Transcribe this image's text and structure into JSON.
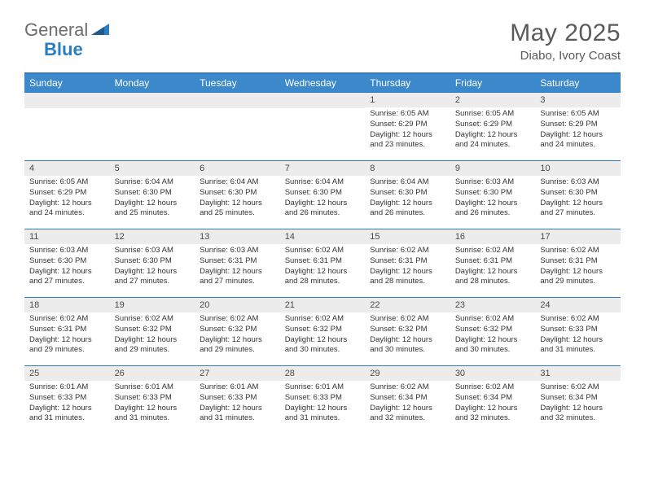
{
  "logo": {
    "part1": "General",
    "part2": "Blue"
  },
  "title": "May 2025",
  "subtitle": "Diabo, Ivory Coast",
  "colors": {
    "accent": "#3b89ca",
    "border": "#2d7dc3",
    "daynum_bg": "#ececec",
    "text_muted": "#5a5a5a",
    "text": "#333333"
  },
  "day_headers": [
    "Sunday",
    "Monday",
    "Tuesday",
    "Wednesday",
    "Thursday",
    "Friday",
    "Saturday"
  ],
  "weeks": [
    [
      null,
      null,
      null,
      null,
      {
        "n": "1",
        "sunrise": "6:05 AM",
        "sunset": "6:29 PM",
        "daylight": "12 hours and 23 minutes."
      },
      {
        "n": "2",
        "sunrise": "6:05 AM",
        "sunset": "6:29 PM",
        "daylight": "12 hours and 24 minutes."
      },
      {
        "n": "3",
        "sunrise": "6:05 AM",
        "sunset": "6:29 PM",
        "daylight": "12 hours and 24 minutes."
      }
    ],
    [
      {
        "n": "4",
        "sunrise": "6:05 AM",
        "sunset": "6:29 PM",
        "daylight": "12 hours and 24 minutes."
      },
      {
        "n": "5",
        "sunrise": "6:04 AM",
        "sunset": "6:30 PM",
        "daylight": "12 hours and 25 minutes."
      },
      {
        "n": "6",
        "sunrise": "6:04 AM",
        "sunset": "6:30 PM",
        "daylight": "12 hours and 25 minutes."
      },
      {
        "n": "7",
        "sunrise": "6:04 AM",
        "sunset": "6:30 PM",
        "daylight": "12 hours and 26 minutes."
      },
      {
        "n": "8",
        "sunrise": "6:04 AM",
        "sunset": "6:30 PM",
        "daylight": "12 hours and 26 minutes."
      },
      {
        "n": "9",
        "sunrise": "6:03 AM",
        "sunset": "6:30 PM",
        "daylight": "12 hours and 26 minutes."
      },
      {
        "n": "10",
        "sunrise": "6:03 AM",
        "sunset": "6:30 PM",
        "daylight": "12 hours and 27 minutes."
      }
    ],
    [
      {
        "n": "11",
        "sunrise": "6:03 AM",
        "sunset": "6:30 PM",
        "daylight": "12 hours and 27 minutes."
      },
      {
        "n": "12",
        "sunrise": "6:03 AM",
        "sunset": "6:30 PM",
        "daylight": "12 hours and 27 minutes."
      },
      {
        "n": "13",
        "sunrise": "6:03 AM",
        "sunset": "6:31 PM",
        "daylight": "12 hours and 27 minutes."
      },
      {
        "n": "14",
        "sunrise": "6:02 AM",
        "sunset": "6:31 PM",
        "daylight": "12 hours and 28 minutes."
      },
      {
        "n": "15",
        "sunrise": "6:02 AM",
        "sunset": "6:31 PM",
        "daylight": "12 hours and 28 minutes."
      },
      {
        "n": "16",
        "sunrise": "6:02 AM",
        "sunset": "6:31 PM",
        "daylight": "12 hours and 28 minutes."
      },
      {
        "n": "17",
        "sunrise": "6:02 AM",
        "sunset": "6:31 PM",
        "daylight": "12 hours and 29 minutes."
      }
    ],
    [
      {
        "n": "18",
        "sunrise": "6:02 AM",
        "sunset": "6:31 PM",
        "daylight": "12 hours and 29 minutes."
      },
      {
        "n": "19",
        "sunrise": "6:02 AM",
        "sunset": "6:32 PM",
        "daylight": "12 hours and 29 minutes."
      },
      {
        "n": "20",
        "sunrise": "6:02 AM",
        "sunset": "6:32 PM",
        "daylight": "12 hours and 29 minutes."
      },
      {
        "n": "21",
        "sunrise": "6:02 AM",
        "sunset": "6:32 PM",
        "daylight": "12 hours and 30 minutes."
      },
      {
        "n": "22",
        "sunrise": "6:02 AM",
        "sunset": "6:32 PM",
        "daylight": "12 hours and 30 minutes."
      },
      {
        "n": "23",
        "sunrise": "6:02 AM",
        "sunset": "6:32 PM",
        "daylight": "12 hours and 30 minutes."
      },
      {
        "n": "24",
        "sunrise": "6:02 AM",
        "sunset": "6:33 PM",
        "daylight": "12 hours and 31 minutes."
      }
    ],
    [
      {
        "n": "25",
        "sunrise": "6:01 AM",
        "sunset": "6:33 PM",
        "daylight": "12 hours and 31 minutes."
      },
      {
        "n": "26",
        "sunrise": "6:01 AM",
        "sunset": "6:33 PM",
        "daylight": "12 hours and 31 minutes."
      },
      {
        "n": "27",
        "sunrise": "6:01 AM",
        "sunset": "6:33 PM",
        "daylight": "12 hours and 31 minutes."
      },
      {
        "n": "28",
        "sunrise": "6:01 AM",
        "sunset": "6:33 PM",
        "daylight": "12 hours and 31 minutes."
      },
      {
        "n": "29",
        "sunrise": "6:02 AM",
        "sunset": "6:34 PM",
        "daylight": "12 hours and 32 minutes."
      },
      {
        "n": "30",
        "sunrise": "6:02 AM",
        "sunset": "6:34 PM",
        "daylight": "12 hours and 32 minutes."
      },
      {
        "n": "31",
        "sunrise": "6:02 AM",
        "sunset": "6:34 PM",
        "daylight": "12 hours and 32 minutes."
      }
    ]
  ],
  "labels": {
    "sunrise": "Sunrise:",
    "sunset": "Sunset:",
    "daylight": "Daylight:"
  }
}
